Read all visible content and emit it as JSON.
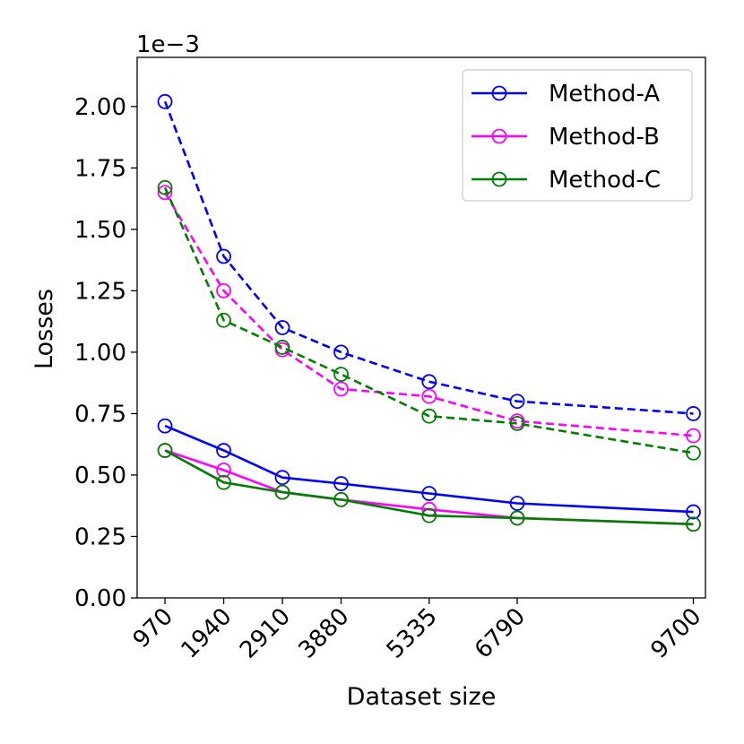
{
  "chart_data": {
    "type": "line",
    "title": "",
    "xlabel": "Dataset size",
    "ylabel": "Losses",
    "y_scale_label": "1e−3",
    "x": [
      970,
      1940,
      2910,
      3880,
      5335,
      6790,
      9700
    ],
    "x_tick_labels": [
      "970",
      "1940",
      "2910",
      "3880",
      "5335",
      "6790",
      "9700"
    ],
    "xlim": [
      510,
      9900
    ],
    "ylim": [
      0,
      2.2
    ],
    "y_ticks": [
      0.0,
      0.25,
      0.5,
      0.75,
      1.0,
      1.25,
      1.5,
      1.75,
      2.0
    ],
    "y_tick_labels": [
      "0.00",
      "0.25",
      "0.50",
      "0.75",
      "1.00",
      "1.25",
      "1.50",
      "1.75",
      "2.00"
    ],
    "grid": false,
    "legend_position": "top-right",
    "series": [
      {
        "name": "Method-A",
        "key": "a_dashed",
        "color": "#0000ff",
        "style": "dashed",
        "in_legend": false,
        "values": [
          2.02,
          1.39,
          1.1,
          1.0,
          0.88,
          0.8,
          0.75
        ]
      },
      {
        "name": "Method-B",
        "key": "b_dashed",
        "color": "#ff00ff",
        "style": "dashed",
        "in_legend": false,
        "values": [
          1.65,
          1.25,
          1.01,
          0.85,
          0.82,
          0.72,
          0.66
        ]
      },
      {
        "name": "Method-C",
        "key": "c_dashed",
        "color": "#008000",
        "style": "dashed",
        "in_legend": false,
        "values": [
          1.67,
          1.13,
          1.02,
          0.91,
          0.74,
          0.71,
          0.59
        ]
      },
      {
        "name": "Method-A",
        "key": "a_solid",
        "color": "#0000ff",
        "style": "solid",
        "in_legend": true,
        "values": [
          0.7,
          0.6,
          0.49,
          0.465,
          0.425,
          0.385,
          0.35
        ]
      },
      {
        "name": "Method-B",
        "key": "b_solid",
        "color": "#ff00ff",
        "style": "solid",
        "in_legend": true,
        "values": [
          0.6,
          0.52,
          0.43,
          0.4,
          0.36,
          0.325,
          0.3
        ]
      },
      {
        "name": "Method-C",
        "key": "c_solid",
        "color": "#008000",
        "style": "solid",
        "in_legend": true,
        "values": [
          0.6,
          0.47,
          0.43,
          0.4,
          0.335,
          0.325,
          0.3
        ]
      }
    ]
  }
}
